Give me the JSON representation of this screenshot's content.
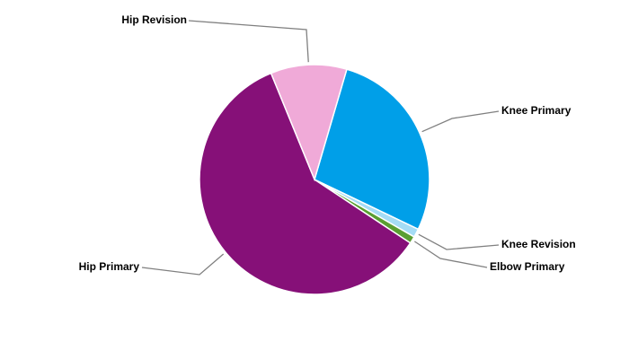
{
  "chart_data": {
    "type": "pie",
    "categories": [
      "Knee Primary",
      "Knee Revision",
      "Elbow Primary",
      "Hip Primary",
      "Hip Revision"
    ],
    "values": [
      27.6,
      1.2,
      1.0,
      59.5,
      10.7
    ],
    "colors": [
      "#009fe8",
      "#a5dcf5",
      "#5a9e32",
      "#861078",
      "#f0aad8"
    ]
  }
}
